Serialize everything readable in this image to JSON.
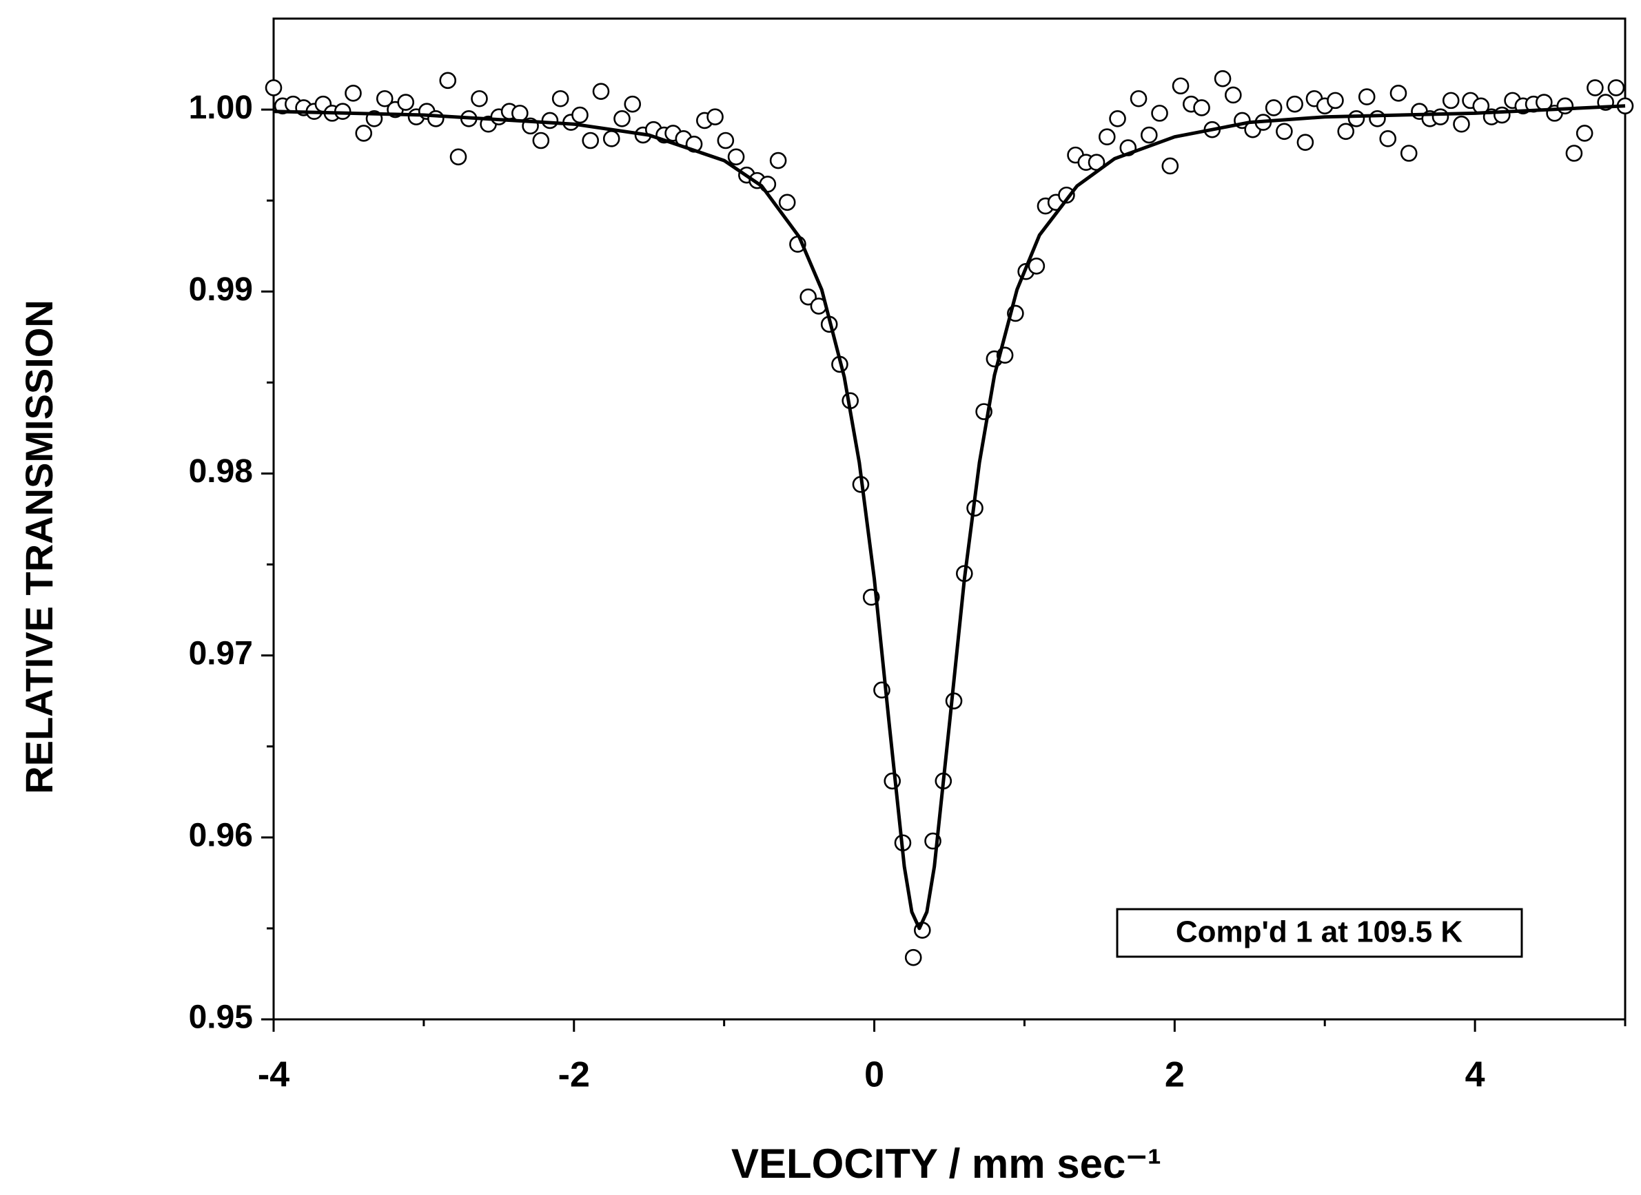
{
  "chart_data": {
    "type": "scatter",
    "x_label": "VELOCITY / mm sec⁻¹",
    "y_label": "RELATIVE TRANSMISSION",
    "annotation": "Comp'd 1 at 109.5 K",
    "xlim": [
      -4,
      5
    ],
    "xticks": [
      -4,
      -2,
      0,
      2,
      4
    ],
    "xminor_ticks": [
      -3,
      -1,
      1,
      3,
      5
    ],
    "ylim": [
      0.95,
      1.005
    ],
    "yticks": [
      0.95,
      0.96,
      0.97,
      0.98,
      0.99,
      {
        "value": 1,
        "label": "1.00"
      }
    ],
    "yminor_ticks": [
      0.955,
      0.965,
      0.975,
      0.985,
      0.995
    ],
    "series": [
      {
        "type": "scatter",
        "color": "#000000",
        "x": [
          -4.0,
          -3.94,
          -3.87,
          -3.8,
          -3.73,
          -3.67,
          -3.61,
          -3.54,
          -3.47,
          -3.4,
          -3.33,
          -3.26,
          -3.19,
          -3.12,
          -3.05,
          -2.98,
          -2.92,
          -2.84,
          -2.77,
          -2.7,
          -2.63,
          -2.57,
          -2.5,
          -2.43,
          -2.36,
          -2.29,
          -2.22,
          -2.16,
          -2.09,
          -2.02,
          -1.96,
          -1.89,
          -1.82,
          -1.75,
          -1.68,
          -1.61,
          -1.54,
          -1.47,
          -1.4,
          -1.34,
          -1.27,
          -1.2,
          -1.13,
          -1.06,
          -0.99,
          -0.92,
          -0.85,
          -0.78,
          -0.71,
          -0.64,
          -0.58,
          -0.51,
          -0.44,
          -0.37,
          -0.3,
          -0.23,
          -0.16,
          -0.09,
          -0.02,
          0.05,
          0.12,
          0.19,
          0.26,
          0.32,
          0.39,
          0.46,
          0.53,
          0.6,
          0.67,
          0.73,
          0.8,
          0.87,
          0.94,
          1.01,
          1.08,
          1.14,
          1.21,
          1.28,
          1.34,
          1.41,
          1.48,
          1.55,
          1.62,
          1.69,
          1.76,
          1.83,
          1.9,
          1.97,
          2.04,
          2.11,
          2.18,
          2.25,
          2.32,
          2.39,
          2.45,
          2.52,
          2.59,
          2.66,
          2.73,
          2.8,
          2.87,
          2.93,
          3.0,
          3.07,
          3.14,
          3.21,
          3.28,
          3.35,
          3.42,
          3.49,
          3.56,
          3.63,
          3.7,
          3.77,
          3.84,
          3.91,
          3.97,
          4.04,
          4.11,
          4.18,
          4.25,
          4.32,
          4.39,
          4.46,
          4.53,
          4.6,
          4.66,
          4.73,
          4.8,
          4.87,
          4.94,
          5.0
        ],
        "values": [
          1.0012,
          1.0002,
          1.0003,
          1.0001,
          0.9999,
          1.0003,
          0.9998,
          0.9999,
          1.0009,
          0.9987,
          0.9995,
          1.0006,
          1.0,
          1.0004,
          0.9996,
          0.9999,
          0.9995,
          1.0016,
          0.9974,
          0.9995,
          1.0006,
          0.9992,
          0.9996,
          0.9999,
          0.9998,
          0.9991,
          0.9983,
          0.9994,
          1.0006,
          0.9993,
          0.9997,
          0.9983,
          1.001,
          0.9984,
          0.9995,
          1.0003,
          0.9986,
          0.9989,
          0.9986,
          0.9987,
          0.9984,
          0.9981,
          0.9994,
          0.9996,
          0.9983,
          0.9974,
          0.9964,
          0.9961,
          0.9959,
          0.9972,
          0.9949,
          0.9926,
          0.9897,
          0.9892,
          0.9882,
          0.986,
          0.984,
          0.9794,
          0.9732,
          0.9681,
          0.9631,
          0.9597,
          0.9534,
          0.9549,
          0.9598,
          0.9631,
          0.9675,
          0.9745,
          0.9781,
          0.9834,
          0.9863,
          0.9865,
          0.9888,
          0.9911,
          0.9914,
          0.9947,
          0.9949,
          0.9953,
          0.9975,
          0.9971,
          0.9971,
          0.9985,
          0.9995,
          0.9979,
          1.0006,
          0.9986,
          0.9998,
          0.9969,
          1.0013,
          1.0003,
          1.0001,
          0.9989,
          1.0017,
          1.0008,
          0.9994,
          0.9989,
          0.9993,
          1.0001,
          0.9988,
          1.0003,
          0.9982,
          1.0006,
          1.0002,
          1.0005,
          0.9988,
          0.9995,
          1.0007,
          0.9995,
          0.9984,
          1.0009,
          0.9976,
          0.9999,
          0.9995,
          0.9996,
          1.0005,
          0.9992,
          1.0005,
          1.0002,
          0.9996,
          0.9997,
          1.0005,
          1.0002,
          1.0003,
          1.0004,
          0.9998,
          1.0002,
          0.9976,
          0.9987,
          1.0012,
          1.0004,
          1.0012,
          1.0002
        ]
      },
      {
        "type": "line",
        "color": "#000000",
        "x": [
          -4,
          -3,
          -2,
          -1.5,
          -1,
          -0.75,
          -0.5,
          -0.35,
          -0.2,
          -0.1,
          0,
          0.1,
          0.2,
          0.25,
          0.3,
          0.35,
          0.4,
          0.5,
          0.6,
          0.7,
          0.8,
          0.95,
          1.1,
          1.35,
          1.6,
          2,
          2.5,
          3,
          4,
          5
        ],
        "values": [
          0.9999,
          0.9997,
          0.9992,
          0.9986,
          0.9972,
          0.9958,
          0.993,
          0.9901,
          0.9853,
          0.9806,
          0.9742,
          0.9662,
          0.9584,
          0.9559,
          0.955,
          0.9559,
          0.9584,
          0.9662,
          0.9742,
          0.9806,
          0.9854,
          0.9901,
          0.9931,
          0.9958,
          0.9973,
          0.9985,
          0.9993,
          0.9996,
          0.9998,
          1.0002
        ]
      }
    ]
  }
}
